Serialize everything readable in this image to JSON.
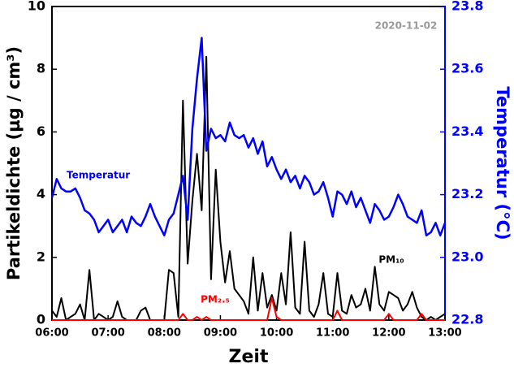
{
  "chart_data": {
    "type": "line",
    "date": "2020-11-02",
    "x_label": "Zeit",
    "y_label": "Partikeldichte (µg / cm³)",
    "y2_label": "Temperatur (°C)",
    "x": [
      360,
      365,
      370,
      375,
      380,
      385,
      390,
      395,
      400,
      405,
      410,
      415,
      420,
      425,
      430,
      435,
      440,
      445,
      450,
      455,
      460,
      465,
      470,
      475,
      480,
      485,
      490,
      495,
      500,
      505,
      510,
      515,
      520,
      525,
      530,
      535,
      540,
      545,
      550,
      555,
      560,
      565,
      570,
      575,
      580,
      585,
      590,
      595,
      600,
      605,
      610,
      615,
      620,
      625,
      630,
      635,
      640,
      645,
      650,
      655,
      660,
      665,
      670,
      675,
      680,
      685,
      690,
      695,
      700,
      705,
      710,
      715,
      720,
      725,
      730,
      735,
      740,
      745,
      750,
      755,
      760,
      765,
      770,
      775,
      780
    ],
    "xlim": [
      360,
      780
    ],
    "xticks": [
      {
        "value": 360,
        "label": "06:00"
      },
      {
        "value": 420,
        "label": "07:00"
      },
      {
        "value": 480,
        "label": "08:00"
      },
      {
        "value": 540,
        "label": "09:00"
      },
      {
        "value": 600,
        "label": "10:00"
      },
      {
        "value": 660,
        "label": "11:00"
      },
      {
        "value": 720,
        "label": "12:00"
      },
      {
        "value": 780,
        "label": "13:00"
      }
    ],
    "ylim": [
      0,
      10
    ],
    "yticks": [
      0,
      2,
      4,
      6,
      8,
      10
    ],
    "y2lim": [
      22.8,
      23.8
    ],
    "y2ticks": [
      22.8,
      {
        "value": 23,
        "label": "23.0"
      },
      23.2,
      23.4,
      23.6,
      23.8
    ],
    "series": [
      {
        "name": "PM₁₀",
        "color": "#000000",
        "values": [
          0.3,
          0.1,
          0.7,
          0,
          0.1,
          0.2,
          0.5,
          0,
          1.6,
          0,
          0.2,
          0.1,
          0,
          0.1,
          0.6,
          0.1,
          0,
          0,
          0,
          0.3,
          0.4,
          0,
          0,
          0,
          0,
          1.6,
          1.5,
          0.1,
          7.0,
          1.8,
          3.8,
          5.3,
          3.5,
          8.4,
          1.3,
          4.8,
          2.5,
          1.2,
          2.2,
          1.0,
          0.8,
          0.6,
          0.2,
          2.0,
          0.3,
          1.5,
          0.4,
          0.8,
          0.3,
          1.5,
          0.5,
          2.8,
          0.4,
          0.2,
          2.5,
          0.3,
          0.1,
          0.5,
          1.5,
          0.2,
          0.1,
          1.5,
          0.3,
          0.2,
          0.8,
          0.4,
          0.5,
          1.0,
          0.3,
          1.7,
          0.5,
          0.3,
          0.9,
          0.8,
          0.7,
          0.3,
          0.5,
          0.9,
          0.4,
          0.1,
          0,
          0.1,
          0,
          0.1,
          0.2
        ]
      },
      {
        "name": "PM₂.₅",
        "color": "#ff0000",
        "values": [
          0,
          0,
          0,
          0,
          0,
          0,
          0,
          0,
          0,
          0,
          0,
          0,
          0,
          0,
          0,
          0,
          0,
          0,
          0,
          0,
          0,
          0,
          0,
          0,
          0,
          0,
          0,
          0,
          0.2,
          0,
          0,
          0.1,
          0,
          0.1,
          0,
          0,
          0,
          0,
          0,
          0,
          0,
          0,
          0,
          0,
          0,
          0,
          0,
          0.7,
          0.1,
          0,
          0,
          0,
          0,
          0,
          0,
          0,
          0,
          0,
          0,
          0,
          0,
          0.3,
          0,
          0,
          0,
          0,
          0,
          0,
          0,
          0,
          0,
          0,
          0.2,
          0,
          0,
          0,
          0,
          0,
          0,
          0.2,
          0,
          0,
          0,
          0,
          0
        ]
      },
      {
        "name": "Temperatur",
        "color": "#0000ff",
        "axis": "y2",
        "values": [
          23.19,
          23.25,
          23.22,
          23.21,
          23.21,
          23.22,
          23.19,
          23.15,
          23.14,
          23.12,
          23.08,
          23.1,
          23.12,
          23.08,
          23.1,
          23.12,
          23.08,
          23.13,
          23.11,
          23.1,
          23.13,
          23.17,
          23.13,
          23.1,
          23.07,
          23.12,
          23.14,
          23.2,
          23.26,
          23.12,
          23.41,
          23.57,
          23.7,
          23.34,
          23.41,
          23.38,
          23.39,
          23.37,
          23.43,
          23.39,
          23.38,
          23.39,
          23.35,
          23.38,
          23.33,
          23.37,
          23.29,
          23.32,
          23.28,
          23.25,
          23.28,
          23.24,
          23.26,
          23.22,
          23.26,
          23.24,
          23.2,
          23.21,
          23.24,
          23.19,
          23.13,
          23.21,
          23.2,
          23.17,
          23.21,
          23.16,
          23.19,
          23.15,
          23.11,
          23.17,
          23.15,
          23.12,
          23.13,
          23.16,
          23.2,
          23.17,
          23.13,
          23.12,
          23.11,
          23.15,
          23.07,
          23.08,
          23.11,
          23.07,
          23.11
        ]
      }
    ]
  }
}
